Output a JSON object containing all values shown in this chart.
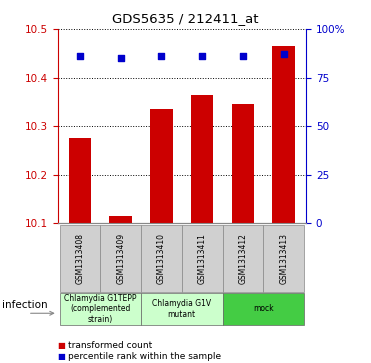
{
  "title": "GDS5635 / 212411_at",
  "samples": [
    "GSM1313408",
    "GSM1313409",
    "GSM1313410",
    "GSM1313411",
    "GSM1313412",
    "GSM1313413"
  ],
  "bar_values": [
    10.275,
    10.115,
    10.335,
    10.365,
    10.345,
    10.465
  ],
  "percentile_values": [
    86.0,
    85.0,
    86.0,
    86.0,
    86.0,
    87.0
  ],
  "ylim": [
    10.1,
    10.5
  ],
  "yticks": [
    10.1,
    10.2,
    10.3,
    10.4,
    10.5
  ],
  "bar_color": "#cc0000",
  "dot_color": "#0000cc",
  "bar_width": 0.55,
  "groups": [
    {
      "label": "Chlamydia G1TEPP\n(complemented\nstrain)",
      "indices": [
        0,
        1
      ],
      "color": "#ccffcc"
    },
    {
      "label": "Chlamydia G1V\nmutant",
      "indices": [
        2,
        3
      ],
      "color": "#ccffcc"
    },
    {
      "label": "mock",
      "indices": [
        4,
        5
      ],
      "color": "#44cc44"
    }
  ],
  "infection_label": "infection",
  "left_axis_color": "#cc0000",
  "right_axis_color": "#0000cc",
  "right_yticks": [
    0,
    25,
    50,
    75,
    100
  ],
  "right_ytick_labels": [
    "0",
    "25",
    "50",
    "75",
    "100%"
  ],
  "right_ylim": [
    0,
    100
  ],
  "legend_items": [
    {
      "color": "#cc0000",
      "label": "transformed count"
    },
    {
      "color": "#0000cc",
      "label": "percentile rank within the sample"
    }
  ],
  "background_color": "#ffffff",
  "grid_color": "#000000",
  "gray_color": "#d0d0d0"
}
